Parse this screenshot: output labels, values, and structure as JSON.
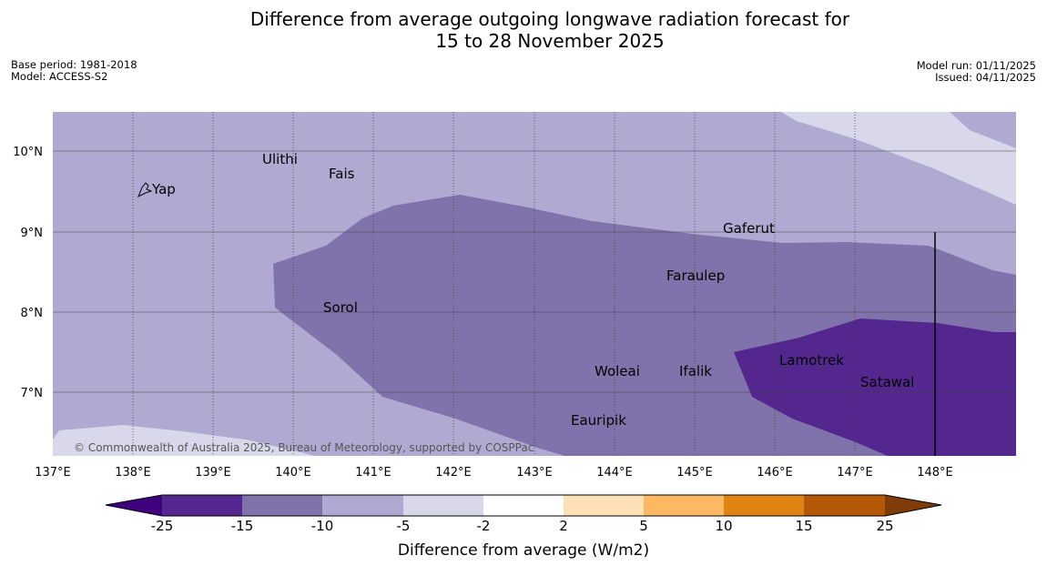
{
  "title_line1": "Difference from average outgoing longwave radiation forecast for",
  "title_line2": "15 to 28 November 2025",
  "base_period": "Base period: 1981-2018",
  "model": "Model: ACCESS-S2",
  "model_run": "Model run: 01/11/2025",
  "issued": "Issued: 04/11/2025",
  "copyright": "© Commonwealth of Australia 2025, Bureau of Meteorology, supported by COSPPac",
  "places": [
    {
      "name": "Ulithi"
    },
    {
      "name": "Fais"
    },
    {
      "name": "Yap"
    },
    {
      "name": "Gaferut"
    },
    {
      "name": "Faraulep"
    },
    {
      "name": "Sorol"
    },
    {
      "name": "Lamotrek"
    },
    {
      "name": "Woleai"
    },
    {
      "name": "Ifalik"
    },
    {
      "name": "Satawal"
    },
    {
      "name": "Eauripik"
    }
  ],
  "lon_ticks": [
    "137°E",
    "138°E",
    "139°E",
    "140°E",
    "141°E",
    "142°E",
    "143°E",
    "144°E",
    "145°E",
    "146°E",
    "147°E",
    "148°E"
  ],
  "lat_ticks": [
    "10°N",
    "9°N",
    "8°N",
    "7°N"
  ],
  "colorbar": {
    "title": "Difference from average (W/m2)",
    "ticks": [
      "-25",
      "-15",
      "-10",
      "-5",
      "-2",
      "2",
      "5",
      "10",
      "15",
      "25"
    ],
    "colors": {
      "below_-25": "#3f007d",
      "-25_-15": "#54278f",
      "-15_-10": "#8072aa",
      "-10_-5": "#b0aad2",
      "-5_-2": "#d8d8ea",
      "-2_2": "#ffffff",
      "2_5": "#fee0b6",
      "5_10": "#fdb863",
      "10_15": "#e08214",
      "15_25": "#b35806",
      "above_25": "#7f3b08"
    }
  }
}
